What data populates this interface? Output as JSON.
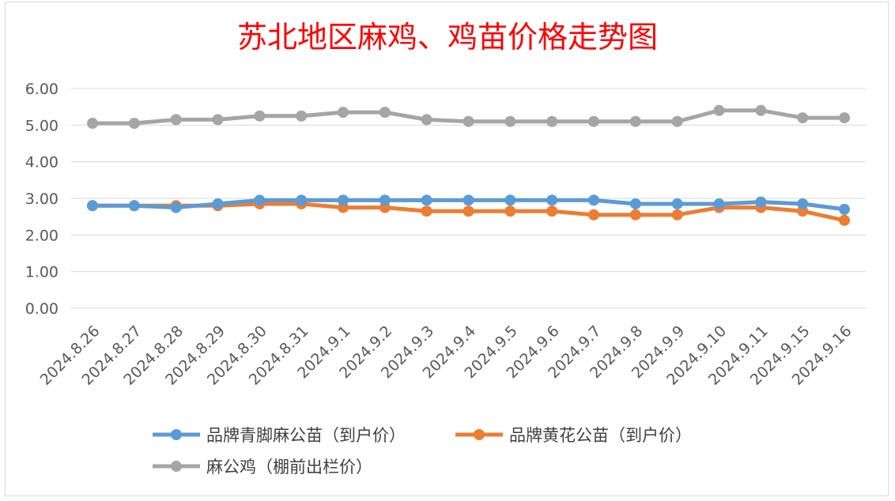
{
  "chart_data": {
    "type": "line",
    "title": "苏北地区麻鸡、鸡苗价格走势图",
    "title_color": "#ff0000",
    "categories": [
      "2024.8.26",
      "2024.8.27",
      "2024.8.28",
      "2024.8.29",
      "2024.8.30",
      "2024.8.31",
      "2024.9.1",
      "2024.9.2",
      "2024.9.3",
      "2024.9.4",
      "2024.9.5",
      "2024.9.6",
      "2024.9.7",
      "2024.9.8",
      "2024.9.9",
      "2024.9.10",
      "2024.9.11",
      "2024.9.15",
      "2024.9.16"
    ],
    "y_ticks": [
      "0.00",
      "1.00",
      "2.00",
      "3.00",
      "4.00",
      "5.00",
      "6.00"
    ],
    "ylim": [
      0,
      6
    ],
    "grid": true,
    "legend_position": "bottom",
    "series": [
      {
        "name": "品牌青脚麻公苗（到户价）",
        "color": "#5b9bd5",
        "values": [
          2.8,
          2.8,
          2.75,
          2.85,
          2.95,
          2.95,
          2.95,
          2.95,
          2.95,
          2.95,
          2.95,
          2.95,
          2.95,
          2.85,
          2.85,
          2.85,
          2.9,
          2.85,
          2.7
        ]
      },
      {
        "name": "品牌黄花公苗（到户价）",
        "color": "#ed7d31",
        "values": [
          2.8,
          2.8,
          2.8,
          2.8,
          2.85,
          2.85,
          2.75,
          2.75,
          2.65,
          2.65,
          2.65,
          2.65,
          2.55,
          2.55,
          2.55,
          2.75,
          2.75,
          2.65,
          2.4
        ]
      },
      {
        "name": "麻公鸡（棚前出栏价）",
        "color": "#a5a5a5",
        "values": [
          5.05,
          5.05,
          5.15,
          5.15,
          5.25,
          5.25,
          5.35,
          5.35,
          5.15,
          5.1,
          5.1,
          5.1,
          5.1,
          5.1,
          5.1,
          5.4,
          5.4,
          5.2,
          5.2
        ]
      }
    ]
  }
}
